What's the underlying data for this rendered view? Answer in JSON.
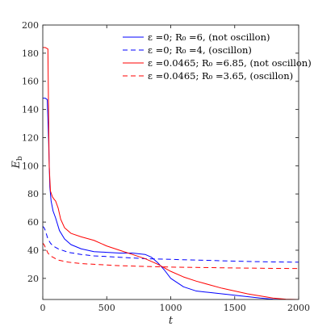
{
  "chart_data": {
    "type": "line",
    "xlabel": "t",
    "ylabel": "E_b",
    "ylabel_main": "E",
    "ylabel_sub": "b",
    "xlim": [
      0,
      2000
    ],
    "ylim": [
      5,
      200
    ],
    "xticks": [
      0,
      500,
      1000,
      1500,
      2000
    ],
    "yticks": [
      20,
      40,
      60,
      80,
      100,
      120,
      140,
      160,
      180,
      200
    ],
    "grid": false,
    "legend_position": "top-right",
    "series": [
      {
        "name": "ε =0; R₀ =6, (not oscillon)",
        "color": "#0000ff",
        "dash": "solid",
        "x": [
          0,
          20,
          35,
          45,
          55,
          65,
          80,
          100,
          130,
          170,
          220,
          300,
          400,
          500,
          600,
          700,
          750,
          800,
          850,
          900,
          950,
          1000,
          1100,
          1200,
          1300,
          1400,
          1500,
          1600,
          1700,
          1800,
          1900,
          2000
        ],
        "y": [
          148,
          148,
          147,
          120,
          85,
          75,
          68,
          63,
          54,
          48,
          44,
          41,
          39,
          38.5,
          38,
          38,
          37.5,
          37,
          35,
          31,
          26,
          20,
          14,
          11,
          10,
          9,
          8,
          7,
          6,
          5.2,
          5,
          5
        ]
      },
      {
        "name": "ε =0; R₀ =4, (oscillon)",
        "color": "#0000ff",
        "dash": "dashed",
        "x": [
          0,
          10,
          20,
          40,
          60,
          80,
          120,
          200,
          300,
          400,
          600,
          800,
          1000,
          1200,
          1400,
          1600,
          1800,
          2000
        ],
        "y": [
          57,
          56,
          54,
          48,
          45,
          43,
          41,
          38.5,
          37,
          36,
          35,
          34,
          33.5,
          33,
          32.5,
          32,
          31.7,
          31.5
        ]
      },
      {
        "name": "ε =0.0465; R₀ =6.85, (not oscillon)",
        "color": "#ff0000",
        "dash": "solid",
        "x": [
          0,
          20,
          40,
          45,
          50,
          60,
          75,
          90,
          100,
          120,
          140,
          170,
          220,
          300,
          400,
          500,
          600,
          700,
          800,
          900,
          1000,
          1100,
          1200,
          1400,
          1600,
          1800,
          1900,
          2000
        ],
        "y": [
          184,
          184,
          183,
          140,
          100,
          82,
          78,
          76,
          75,
          70,
          62,
          56,
          52,
          49.5,
          47,
          43,
          40,
          37,
          34,
          30,
          25,
          21,
          18,
          13,
          9,
          6,
          5.2,
          5
        ]
      },
      {
        "name": "ε =0.0465; R₀ =3.65, (oscillon)",
        "color": "#ff0000",
        "dash": "dashed",
        "x": [
          0,
          10,
          20,
          40,
          60,
          80,
          120,
          200,
          300,
          400,
          500,
          600,
          800,
          1000,
          1200,
          1400,
          1600,
          1800,
          2000
        ],
        "y": [
          45,
          44,
          42,
          38,
          36,
          35,
          33,
          31.5,
          30.5,
          30,
          29.5,
          29,
          28.5,
          28,
          27.8,
          27.5,
          27.3,
          27.1,
          27
        ]
      }
    ]
  }
}
